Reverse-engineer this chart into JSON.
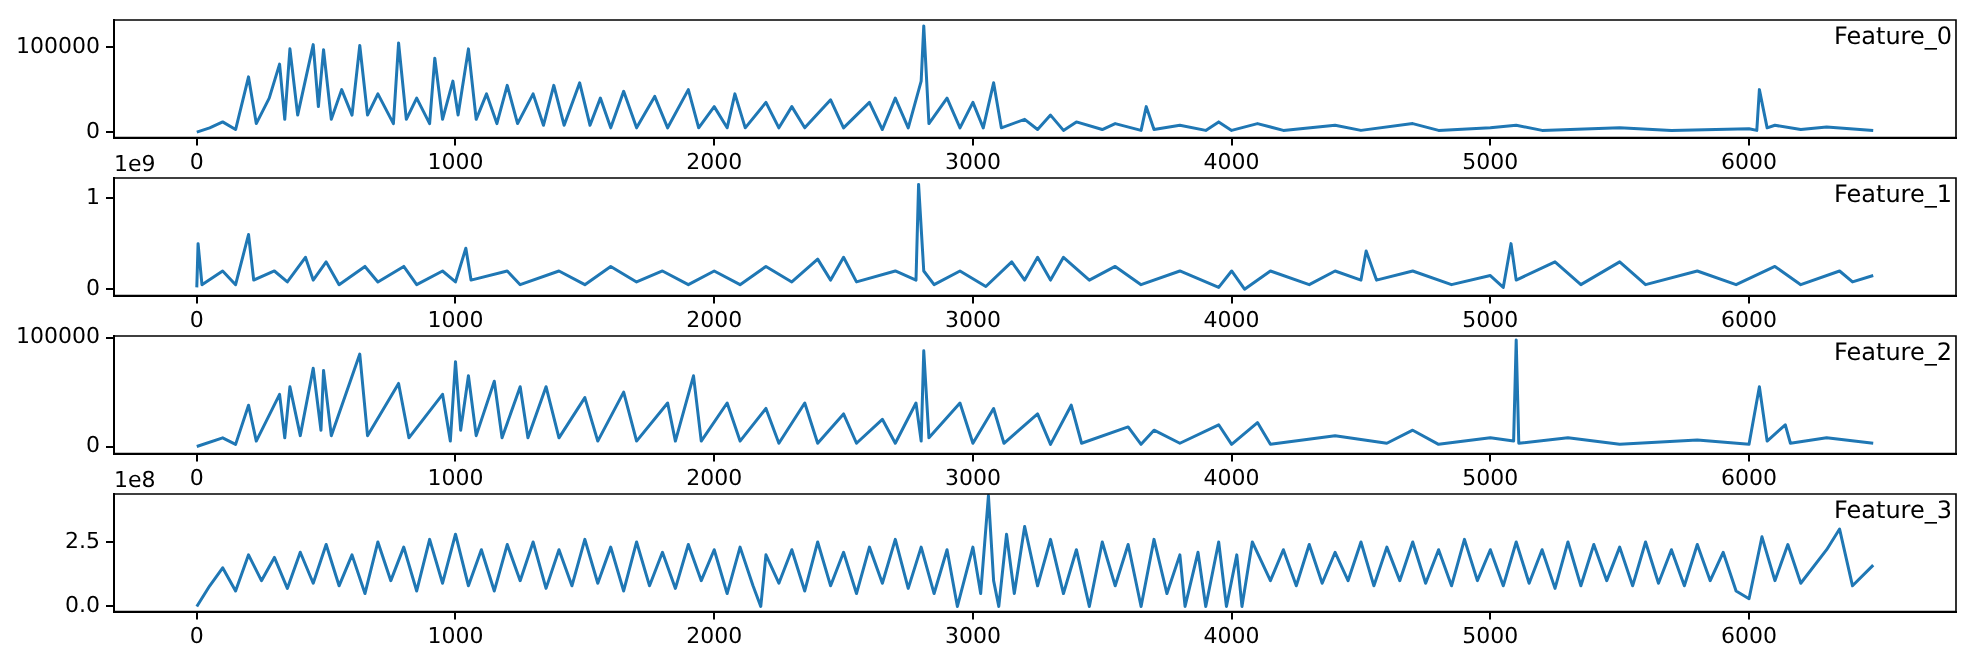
{
  "chart_data": [
    {
      "type": "line",
      "title": "Feature_0",
      "xlim": [
        -320,
        6800
      ],
      "xticks": [
        0,
        1000,
        2000,
        3000,
        4000,
        5000,
        6000
      ],
      "ylim": [
        -6500,
        132000
      ],
      "yticks": [
        0,
        100000
      ],
      "grid": false,
      "legend": false,
      "marker": "none",
      "line_style": "solid",
      "series": [
        {
          "color": "#1f77b4",
          "x": [
            0,
            50,
            100,
            150,
            200,
            230,
            280,
            320,
            340,
            360,
            390,
            450,
            470,
            490,
            520,
            560,
            600,
            630,
            660,
            700,
            760,
            780,
            810,
            850,
            900,
            920,
            950,
            990,
            1010,
            1050,
            1080,
            1120,
            1160,
            1200,
            1240,
            1300,
            1340,
            1380,
            1420,
            1480,
            1520,
            1560,
            1600,
            1650,
            1700,
            1770,
            1820,
            1900,
            1940,
            2000,
            2050,
            2080,
            2120,
            2200,
            2250,
            2300,
            2350,
            2450,
            2500,
            2600,
            2650,
            2700,
            2750,
            2800,
            2810,
            2830,
            2900,
            2950,
            3000,
            3040,
            3080,
            3110,
            3200,
            3250,
            3300,
            3350,
            3400,
            3500,
            3550,
            3650,
            3670,
            3700,
            3800,
            3900,
            3950,
            4000,
            4100,
            4200,
            4400,
            4500,
            4700,
            4800,
            5000,
            5100,
            5200,
            5500,
            5700,
            6000,
            6030,
            6040,
            6070,
            6100,
            6200,
            6300,
            6480
          ],
          "values": [
            0,
            5000,
            12000,
            3000,
            65000,
            10000,
            40000,
            80000,
            15000,
            98000,
            20000,
            103000,
            30000,
            97000,
            15000,
            50000,
            20000,
            102000,
            20000,
            45000,
            10000,
            105000,
            15000,
            40000,
            10000,
            87000,
            15000,
            60000,
            20000,
            98000,
            15000,
            45000,
            10000,
            55000,
            10000,
            45000,
            8000,
            55000,
            8000,
            58000,
            8000,
            40000,
            5000,
            48000,
            5000,
            42000,
            5000,
            50000,
            5000,
            30000,
            5000,
            45000,
            5000,
            35000,
            5000,
            30000,
            5000,
            38000,
            5000,
            35000,
            3000,
            40000,
            5000,
            60000,
            125000,
            10000,
            40000,
            5000,
            35000,
            5000,
            58000,
            5000,
            15000,
            3000,
            20000,
            2000,
            12000,
            3000,
            10000,
            2000,
            30000,
            3000,
            8000,
            2000,
            12000,
            2000,
            10000,
            2000,
            8000,
            2000,
            10000,
            2000,
            5000,
            8000,
            2000,
            5000,
            2000,
            4000,
            2000,
            50000,
            5000,
            8000,
            3000,
            6000,
            2000
          ]
        }
      ]
    },
    {
      "type": "line",
      "title": "Feature_1",
      "annotations": [
        "1e9"
      ],
      "xlim": [
        -320,
        6800
      ],
      "xticks": [
        0,
        1000,
        2000,
        3000,
        4000,
        5000,
        6000
      ],
      "ylim": [
        -0.07,
        1.22
      ],
      "yticks": [
        0,
        1
      ],
      "grid": false,
      "legend": false,
      "marker": "none",
      "line_style": "solid",
      "series": [
        {
          "color": "#1f77b4",
          "x": [
            0,
            5,
            20,
            100,
            150,
            200,
            220,
            300,
            350,
            420,
            450,
            500,
            550,
            650,
            700,
            800,
            850,
            950,
            1000,
            1040,
            1060,
            1200,
            1250,
            1400,
            1500,
            1600,
            1700,
            1800,
            1900,
            2000,
            2100,
            2200,
            2300,
            2400,
            2450,
            2500,
            2550,
            2700,
            2780,
            2790,
            2810,
            2850,
            2950,
            3050,
            3150,
            3200,
            3250,
            3300,
            3350,
            3450,
            3550,
            3650,
            3800,
            3950,
            4000,
            4050,
            4150,
            4300,
            4400,
            4500,
            4520,
            4560,
            4700,
            4850,
            5000,
            5050,
            5080,
            5100,
            5250,
            5350,
            5500,
            5600,
            5800,
            5950,
            6100,
            6200,
            6350,
            6400,
            6480
          ],
          "values": [
            0.02,
            0.5,
            0.05,
            0.2,
            0.05,
            0.6,
            0.1,
            0.2,
            0.08,
            0.35,
            0.1,
            0.3,
            0.05,
            0.25,
            0.08,
            0.25,
            0.05,
            0.2,
            0.08,
            0.45,
            0.1,
            0.2,
            0.05,
            0.2,
            0.05,
            0.25,
            0.08,
            0.2,
            0.05,
            0.2,
            0.05,
            0.25,
            0.08,
            0.33,
            0.1,
            0.35,
            0.08,
            0.2,
            0.1,
            1.15,
            0.2,
            0.05,
            0.2,
            0.03,
            0.3,
            0.1,
            0.35,
            0.1,
            0.35,
            0.1,
            0.25,
            0.05,
            0.2,
            0.02,
            0.2,
            0.0,
            0.2,
            0.05,
            0.2,
            0.1,
            0.42,
            0.1,
            0.2,
            0.05,
            0.15,
            0.02,
            0.5,
            0.1,
            0.3,
            0.05,
            0.3,
            0.05,
            0.2,
            0.05,
            0.25,
            0.05,
            0.2,
            0.08,
            0.15
          ]
        }
      ]
    },
    {
      "type": "line",
      "title": "Feature_2",
      "xlim": [
        -320,
        6800
      ],
      "xticks": [
        0,
        1000,
        2000,
        3000,
        4000,
        5000,
        6000
      ],
      "ylim": [
        -6500,
        101600
      ],
      "yticks": [
        0,
        100000
      ],
      "grid": false,
      "legend": false,
      "marker": "none",
      "line_style": "solid",
      "series": [
        {
          "color": "#1f77b4",
          "x": [
            0,
            100,
            150,
            200,
            230,
            320,
            340,
            360,
            400,
            450,
            480,
            490,
            520,
            630,
            660,
            780,
            820,
            950,
            980,
            1000,
            1020,
            1050,
            1080,
            1150,
            1180,
            1250,
            1280,
            1350,
            1400,
            1500,
            1550,
            1650,
            1700,
            1820,
            1850,
            1920,
            1950,
            2050,
            2100,
            2200,
            2250,
            2350,
            2400,
            2500,
            2550,
            2650,
            2700,
            2780,
            2800,
            2810,
            2830,
            2950,
            3000,
            3080,
            3120,
            3250,
            3300,
            3380,
            3420,
            3600,
            3650,
            3700,
            3800,
            3950,
            4000,
            4100,
            4150,
            4400,
            4600,
            4700,
            4800,
            5000,
            5090,
            5100,
            5110,
            5300,
            5500,
            5800,
            6000,
            6040,
            6070,
            6140,
            6160,
            6300,
            6480
          ],
          "values": [
            0,
            8000,
            2000,
            38000,
            5000,
            48000,
            8000,
            55000,
            10000,
            72000,
            15000,
            70000,
            10000,
            85000,
            10000,
            58000,
            8000,
            48000,
            5000,
            78000,
            15000,
            65000,
            10000,
            60000,
            8000,
            55000,
            8000,
            55000,
            8000,
            45000,
            5000,
            50000,
            5000,
            40000,
            5000,
            65000,
            5000,
            40000,
            5000,
            35000,
            3000,
            40000,
            3000,
            30000,
            3000,
            25000,
            3000,
            40000,
            5000,
            88000,
            8000,
            40000,
            3000,
            35000,
            3000,
            30000,
            2000,
            38000,
            3000,
            18000,
            2000,
            15000,
            3000,
            20000,
            2000,
            22000,
            2000,
            10000,
            3000,
            15000,
            2000,
            8000,
            5000,
            98000,
            3000,
            8000,
            2000,
            6000,
            2000,
            55000,
            5000,
            20000,
            3000,
            8000,
            3000
          ]
        }
      ]
    },
    {
      "type": "line",
      "title": "Feature_3",
      "annotations": [
        "1e8"
      ],
      "xlim": [
        -320,
        6800
      ],
      "xticks": [
        0,
        1000,
        2000,
        3000,
        4000,
        5000,
        6000
      ],
      "ylim": [
        -0.2,
        4.36
      ],
      "yticks": [
        {
          "value": 0,
          "label": "0.0"
        },
        {
          "value": 2.5,
          "label": "2.5"
        }
      ],
      "grid": false,
      "legend": false,
      "marker": "none",
      "line_style": "solid",
      "series": [
        {
          "color": "#1f77b4",
          "x": [
            0,
            50,
            100,
            150,
            200,
            250,
            300,
            350,
            400,
            450,
            500,
            550,
            600,
            650,
            700,
            750,
            800,
            850,
            900,
            950,
            1000,
            1050,
            1100,
            1150,
            1200,
            1250,
            1300,
            1350,
            1400,
            1450,
            1500,
            1550,
            1600,
            1650,
            1700,
            1750,
            1800,
            1850,
            1900,
            1950,
            2000,
            2050,
            2100,
            2150,
            2180,
            2200,
            2250,
            2300,
            2350,
            2400,
            2450,
            2500,
            2550,
            2600,
            2650,
            2700,
            2750,
            2800,
            2850,
            2900,
            2940,
            3000,
            3030,
            3060,
            3080,
            3100,
            3130,
            3160,
            3200,
            3250,
            3300,
            3350,
            3400,
            3450,
            3500,
            3550,
            3600,
            3650,
            3700,
            3750,
            3800,
            3820,
            3870,
            3900,
            3950,
            3980,
            4020,
            4040,
            4080,
            4150,
            4200,
            4250,
            4300,
            4350,
            4400,
            4450,
            4500,
            4550,
            4600,
            4650,
            4700,
            4750,
            4800,
            4850,
            4900,
            4950,
            5000,
            5050,
            5100,
            5150,
            5200,
            5250,
            5300,
            5350,
            5400,
            5450,
            5500,
            5550,
            5600,
            5650,
            5700,
            5750,
            5800,
            5850,
            5900,
            5950,
            6000,
            6050,
            6100,
            6150,
            6200,
            6300,
            6350,
            6400,
            6480
          ],
          "values": [
            0.0,
            0.8,
            1.5,
            0.6,
            2.0,
            1.0,
            1.9,
            0.7,
            2.1,
            0.9,
            2.4,
            0.8,
            2.0,
            0.5,
            2.5,
            1.0,
            2.3,
            0.6,
            2.6,
            0.9,
            2.8,
            0.8,
            2.2,
            0.6,
            2.4,
            1.0,
            2.5,
            0.7,
            2.2,
            0.8,
            2.6,
            0.9,
            2.3,
            0.6,
            2.5,
            0.8,
            2.1,
            0.7,
            2.4,
            1.0,
            2.2,
            0.5,
            2.3,
            0.8,
            0.0,
            2.0,
            0.9,
            2.2,
            0.6,
            2.5,
            0.8,
            2.1,
            0.5,
            2.3,
            0.9,
            2.6,
            0.7,
            2.3,
            0.5,
            2.2,
            0.0,
            2.3,
            0.5,
            4.3,
            1.0,
            0.0,
            2.8,
            0.5,
            3.1,
            0.8,
            2.6,
            0.5,
            2.2,
            0.0,
            2.5,
            0.8,
            2.4,
            0.0,
            2.6,
            0.5,
            2.0,
            0.0,
            2.1,
            0.0,
            2.5,
            0.0,
            2.0,
            0.0,
            2.5,
            1.0,
            2.2,
            0.8,
            2.4,
            0.9,
            2.1,
            1.0,
            2.5,
            0.8,
            2.3,
            1.0,
            2.5,
            0.9,
            2.2,
            0.8,
            2.6,
            1.0,
            2.2,
            0.8,
            2.5,
            0.9,
            2.2,
            0.7,
            2.5,
            0.8,
            2.4,
            1.0,
            2.3,
            0.8,
            2.5,
            0.9,
            2.2,
            0.8,
            2.4,
            1.0,
            2.1,
            0.6,
            0.3,
            2.7,
            1.0,
            2.4,
            0.9,
            2.2,
            3.0,
            0.8,
            1.6
          ]
        }
      ]
    }
  ]
}
